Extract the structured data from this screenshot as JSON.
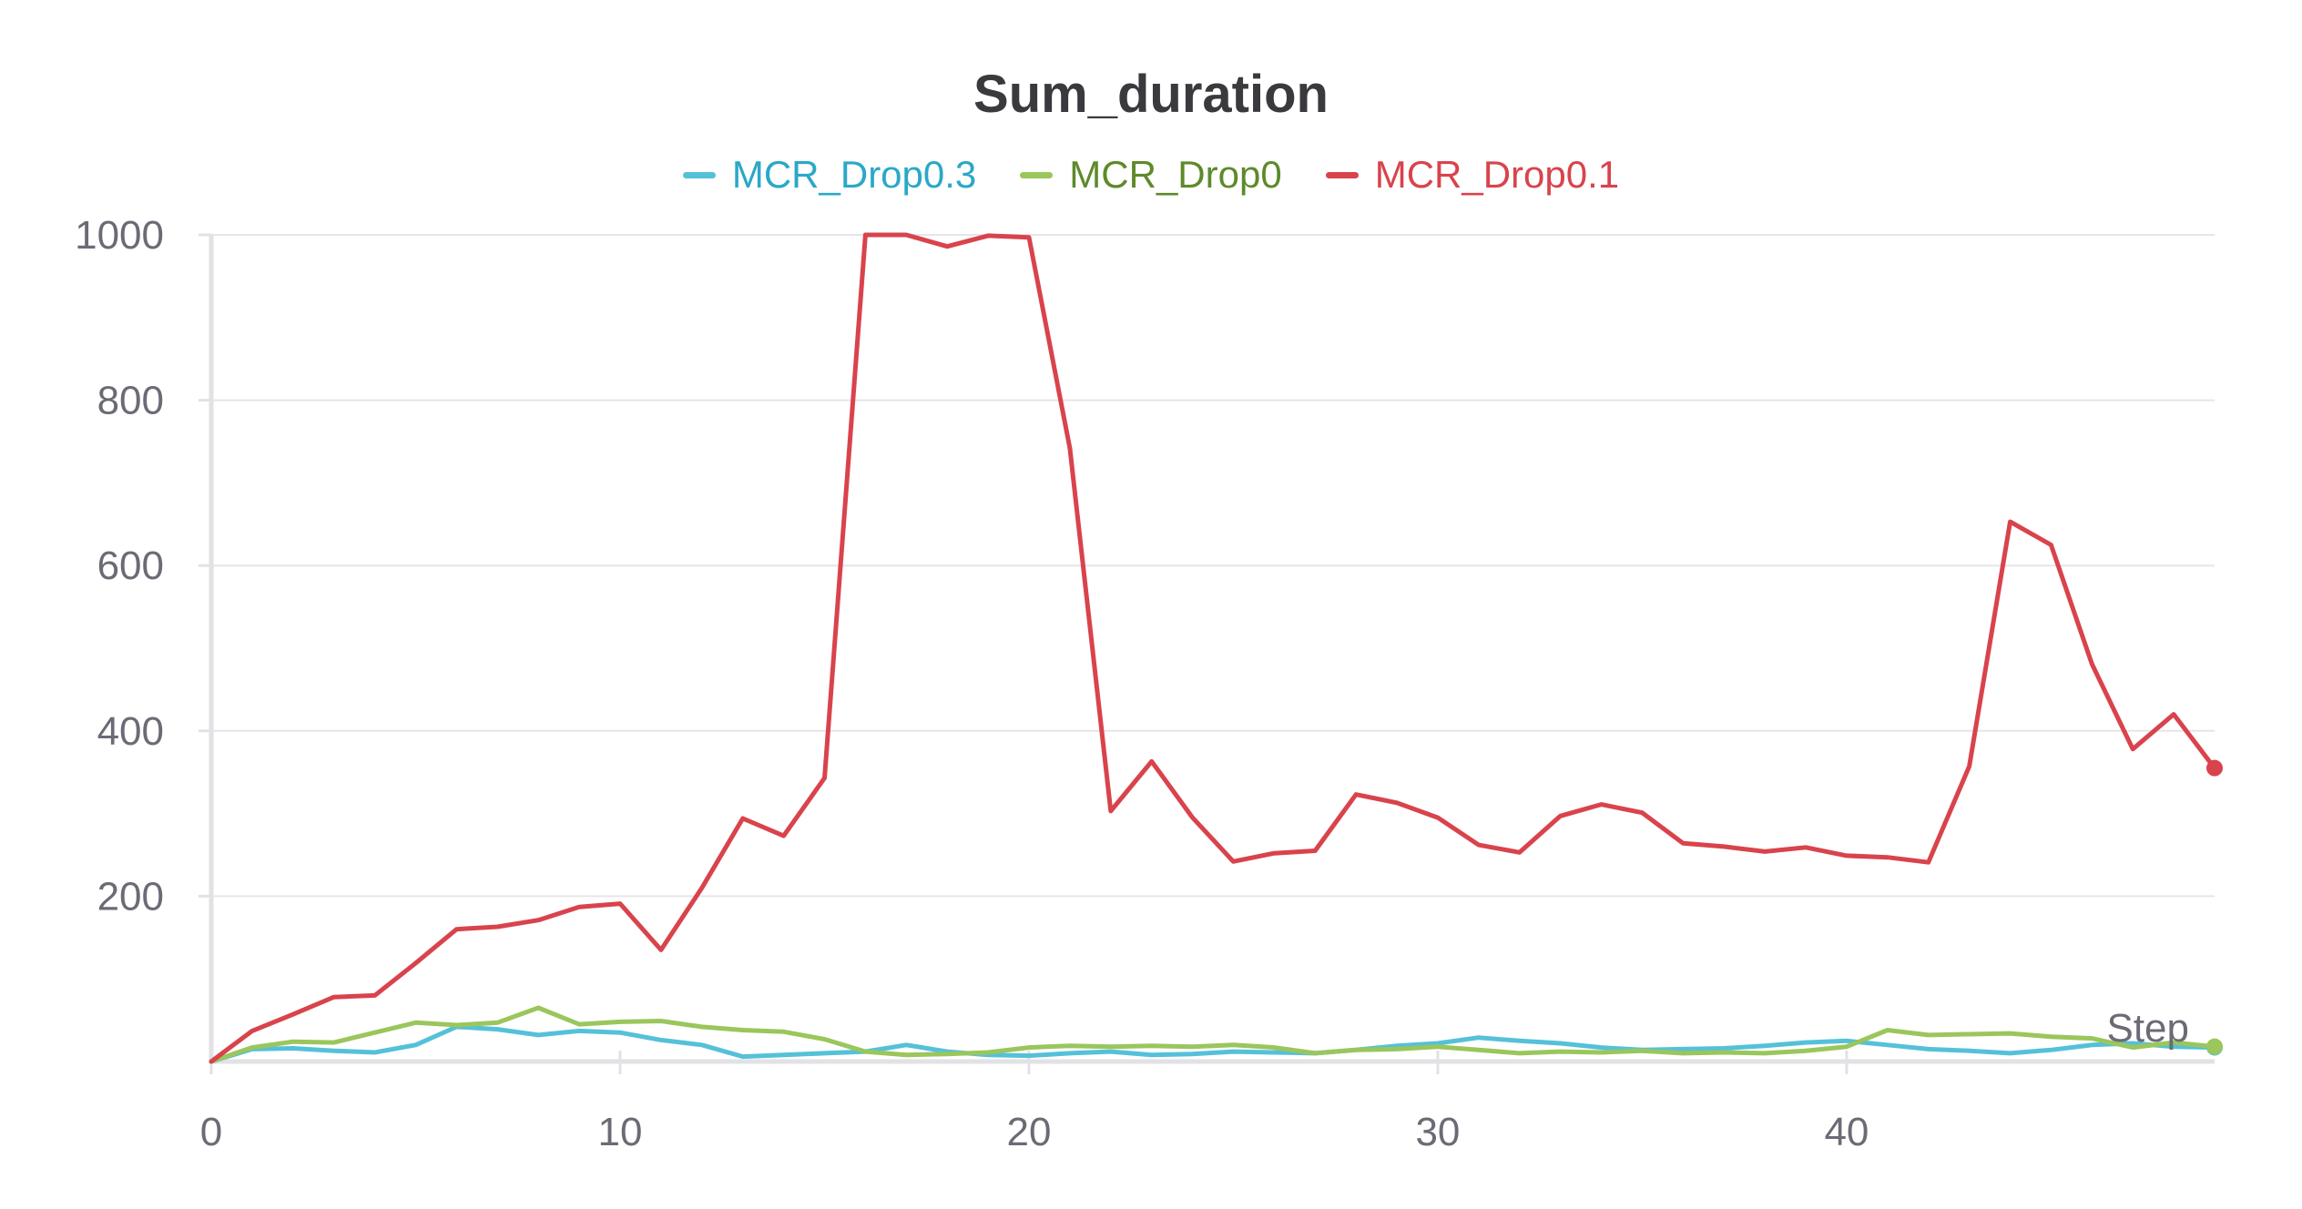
{
  "chart_data": {
    "type": "line",
    "title": "Sum_duration",
    "xlabel": "Step",
    "ylabel": "",
    "xlim": [
      0,
      49
    ],
    "ylim": [
      0,
      1000
    ],
    "x_ticks": [
      0,
      10,
      20,
      30,
      40
    ],
    "y_ticks": [
      200,
      400,
      600,
      800,
      1000
    ],
    "grid": true,
    "legend_position": "top-center",
    "x": [
      0,
      1,
      2,
      3,
      4,
      5,
      6,
      7,
      8,
      9,
      10,
      11,
      12,
      13,
      14,
      15,
      16,
      17,
      18,
      19,
      20,
      21,
      22,
      23,
      24,
      25,
      26,
      27,
      28,
      29,
      30,
      31,
      32,
      33,
      34,
      35,
      36,
      37,
      38,
      39,
      40,
      41,
      42,
      43,
      44,
      45,
      46,
      47,
      48,
      49
    ],
    "series": [
      {
        "name": "MCR_Drop0.3",
        "color": "#55c1d9",
        "values": [
          0,
          15,
          16,
          13,
          11,
          20,
          42,
          39,
          32,
          37,
          35,
          26,
          20,
          6,
          8,
          10,
          12,
          20,
          12,
          8,
          7,
          10,
          12,
          8,
          9,
          12,
          11,
          10,
          14,
          19,
          22,
          29,
          25,
          22,
          17,
          14,
          15,
          16,
          19,
          23,
          25,
          20,
          15,
          13,
          10,
          14,
          20,
          22,
          18,
          17
        ]
      },
      {
        "name": "MCR_Drop0",
        "color": "#9ac65c",
        "values": [
          0,
          17,
          24,
          23,
          35,
          47,
          44,
          47,
          65,
          45,
          48,
          49,
          42,
          38,
          36,
          27,
          12,
          8,
          9,
          11,
          17,
          19,
          18,
          19,
          18,
          20,
          17,
          10,
          14,
          15,
          18,
          14,
          10,
          12,
          11,
          13,
          10,
          11,
          10,
          13,
          18,
          38,
          32,
          33,
          34,
          30,
          28,
          17,
          23,
          18
        ]
      },
      {
        "name": "MCR_Drop0.1",
        "color": "#d9434c",
        "values": [
          0,
          37,
          57,
          78,
          80,
          119,
          160,
          163,
          171,
          187,
          191,
          135,
          210,
          294,
          273,
          343,
          1000,
          1000,
          986,
          999,
          997,
          742,
          303,
          363,
          295,
          242,
          252,
          255,
          323,
          313,
          295,
          262,
          253,
          297,
          311,
          301,
          264,
          260,
          254,
          259,
          249,
          247,
          241,
          357,
          653,
          625,
          481,
          378,
          420,
          355
        ]
      }
    ]
  }
}
